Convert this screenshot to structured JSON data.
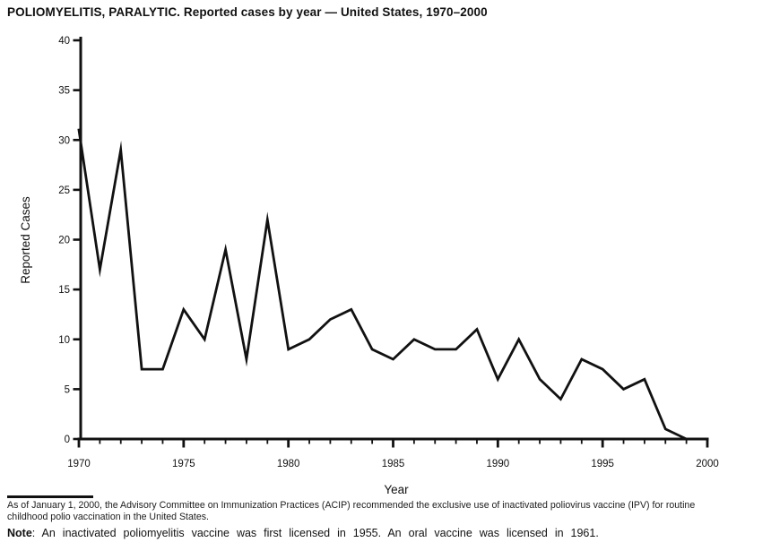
{
  "title": "POLIOMYELITIS, PARALYTIC. Reported cases by year — United States, 1970–2000",
  "chart_data": {
    "type": "line",
    "title": "POLIOMYELITIS, PARALYTIC. Reported cases by year — United States, 1970–2000",
    "xlabel": "Year",
    "ylabel": "Reported Cases",
    "xlim": [
      1970,
      2000
    ],
    "ylim": [
      0,
      40
    ],
    "grid": false,
    "legend": "none",
    "line_color": "#111111",
    "y_ticks": [
      0,
      5,
      10,
      15,
      20,
      25,
      30,
      35,
      40
    ],
    "x_major_ticks": [
      1970,
      1975,
      1980,
      1985,
      1990,
      1995,
      2000
    ],
    "x_minor_tick_interval": 1,
    "x": [
      1970,
      1971,
      1972,
      1973,
      1974,
      1975,
      1976,
      1977,
      1978,
      1979,
      1980,
      1981,
      1982,
      1983,
      1984,
      1985,
      1986,
      1987,
      1988,
      1989,
      1990,
      1991,
      1992,
      1993,
      1994,
      1995,
      1996,
      1997,
      1998,
      1999,
      2000
    ],
    "values": [
      31,
      17,
      29,
      7,
      7,
      13,
      10,
      19,
      8,
      22,
      9,
      10,
      12,
      13,
      9,
      8,
      10,
      9,
      9,
      11,
      6,
      10,
      6,
      4,
      8,
      7,
      5,
      6,
      1,
      0,
      0
    ]
  },
  "footnote": {
    "line1": "As of January 1, 2000, the Advisory Committee on Immunization Practices (ACIP) recommended the exclusive use of inactivated poliovirus vaccine (IPV) for routine",
    "line2": "childhood polio vaccination in the United States."
  },
  "note": {
    "label": "Note",
    "text": ": An inactivated poliomyelitis vaccine was first licensed in 1955. An oral vaccine was licensed in 1961."
  }
}
